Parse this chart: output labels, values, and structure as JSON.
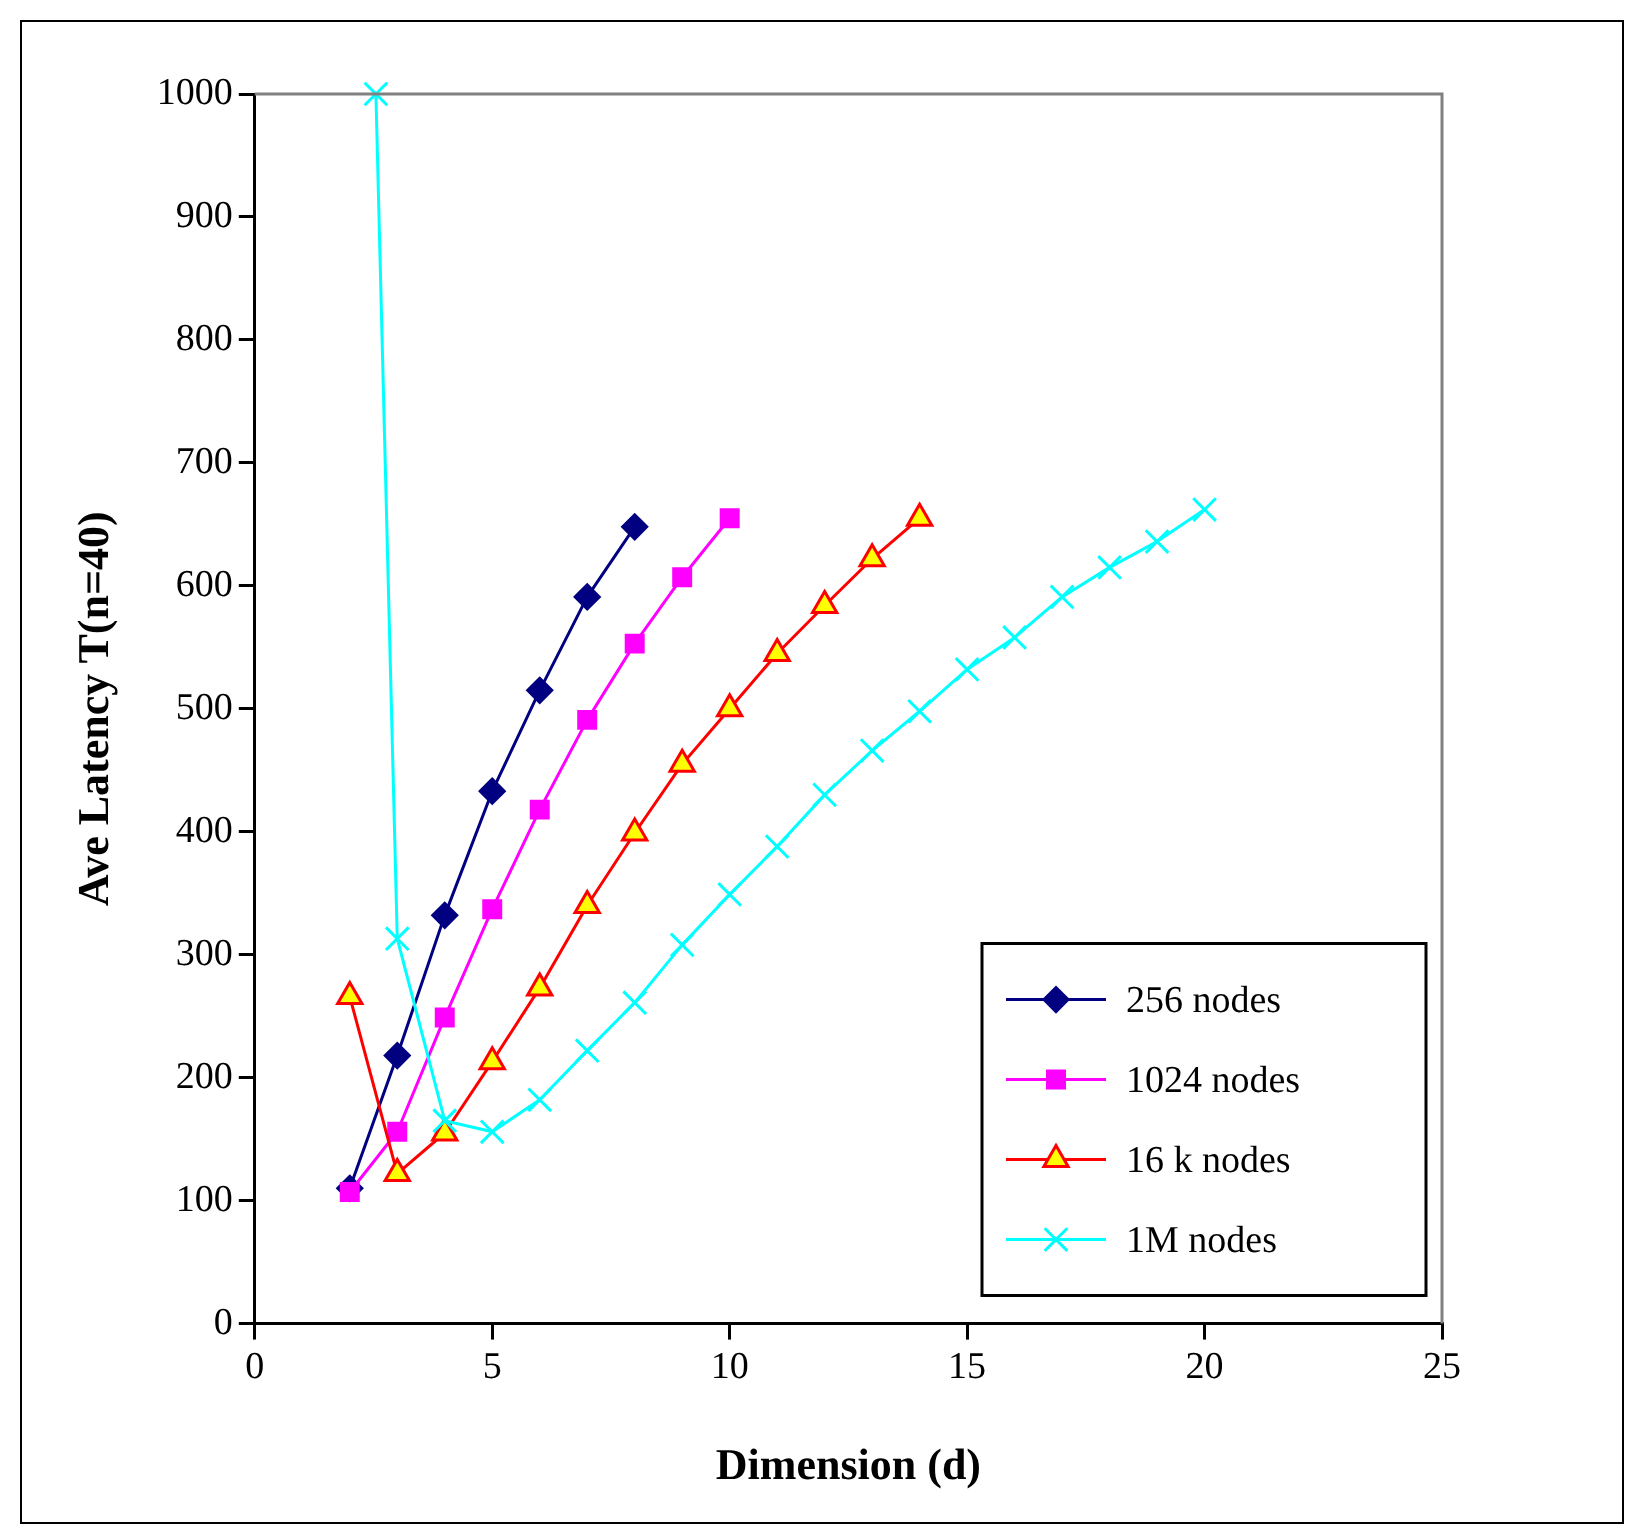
{
  "chart_data": {
    "type": "line",
    "xlabel": "Dimension (d)",
    "ylabel": "Ave Latency T(n=40)",
    "xlim": [
      0,
      25
    ],
    "xticks": [
      0,
      5,
      10,
      15,
      20,
      25
    ],
    "ylim": [
      0,
      1000
    ],
    "yticks": [
      0,
      100,
      200,
      300,
      400,
      500,
      600,
      700,
      800,
      900,
      1000
    ],
    "grid": false,
    "legend": "bottom right",
    "line_style": "solid",
    "series": [
      {
        "name": "256 nodes",
        "color": "#000080",
        "marker": "diamond",
        "x": [
          2,
          3,
          4,
          5,
          6,
          7,
          8
        ],
        "values": [
          110,
          218,
          332,
          433,
          515,
          591,
          648
        ]
      },
      {
        "name": "1024 nodes",
        "color": "#ff00ff",
        "marker": "square",
        "x": [
          2,
          3,
          4,
          5,
          6,
          7,
          8,
          9,
          10
        ],
        "values": [
          107,
          156,
          249,
          337,
          418,
          491,
          553,
          607,
          655
        ]
      },
      {
        "name": "16 k nodes",
        "color": "#ff0000",
        "marker": "triangle",
        "x": [
          2,
          3,
          4,
          5,
          6,
          7,
          8,
          9,
          10,
          11,
          12,
          13,
          14
        ],
        "values": [
          266,
          122,
          155,
          213,
          273,
          340,
          399,
          455,
          500,
          545,
          584,
          622,
          655
        ]
      },
      {
        "name": "1M nodes",
        "color": "#00ffff",
        "marker": "cross",
        "x": [
          2.55,
          3,
          4,
          5,
          6,
          7,
          8,
          9,
          10,
          11,
          12,
          13,
          14,
          15,
          16,
          17,
          18,
          19,
          20
        ],
        "values": [
          1000,
          313,
          165,
          156,
          182,
          222,
          261,
          308,
          349,
          388,
          430,
          466,
          498,
          532,
          558,
          591,
          615,
          636,
          662
        ]
      }
    ]
  }
}
